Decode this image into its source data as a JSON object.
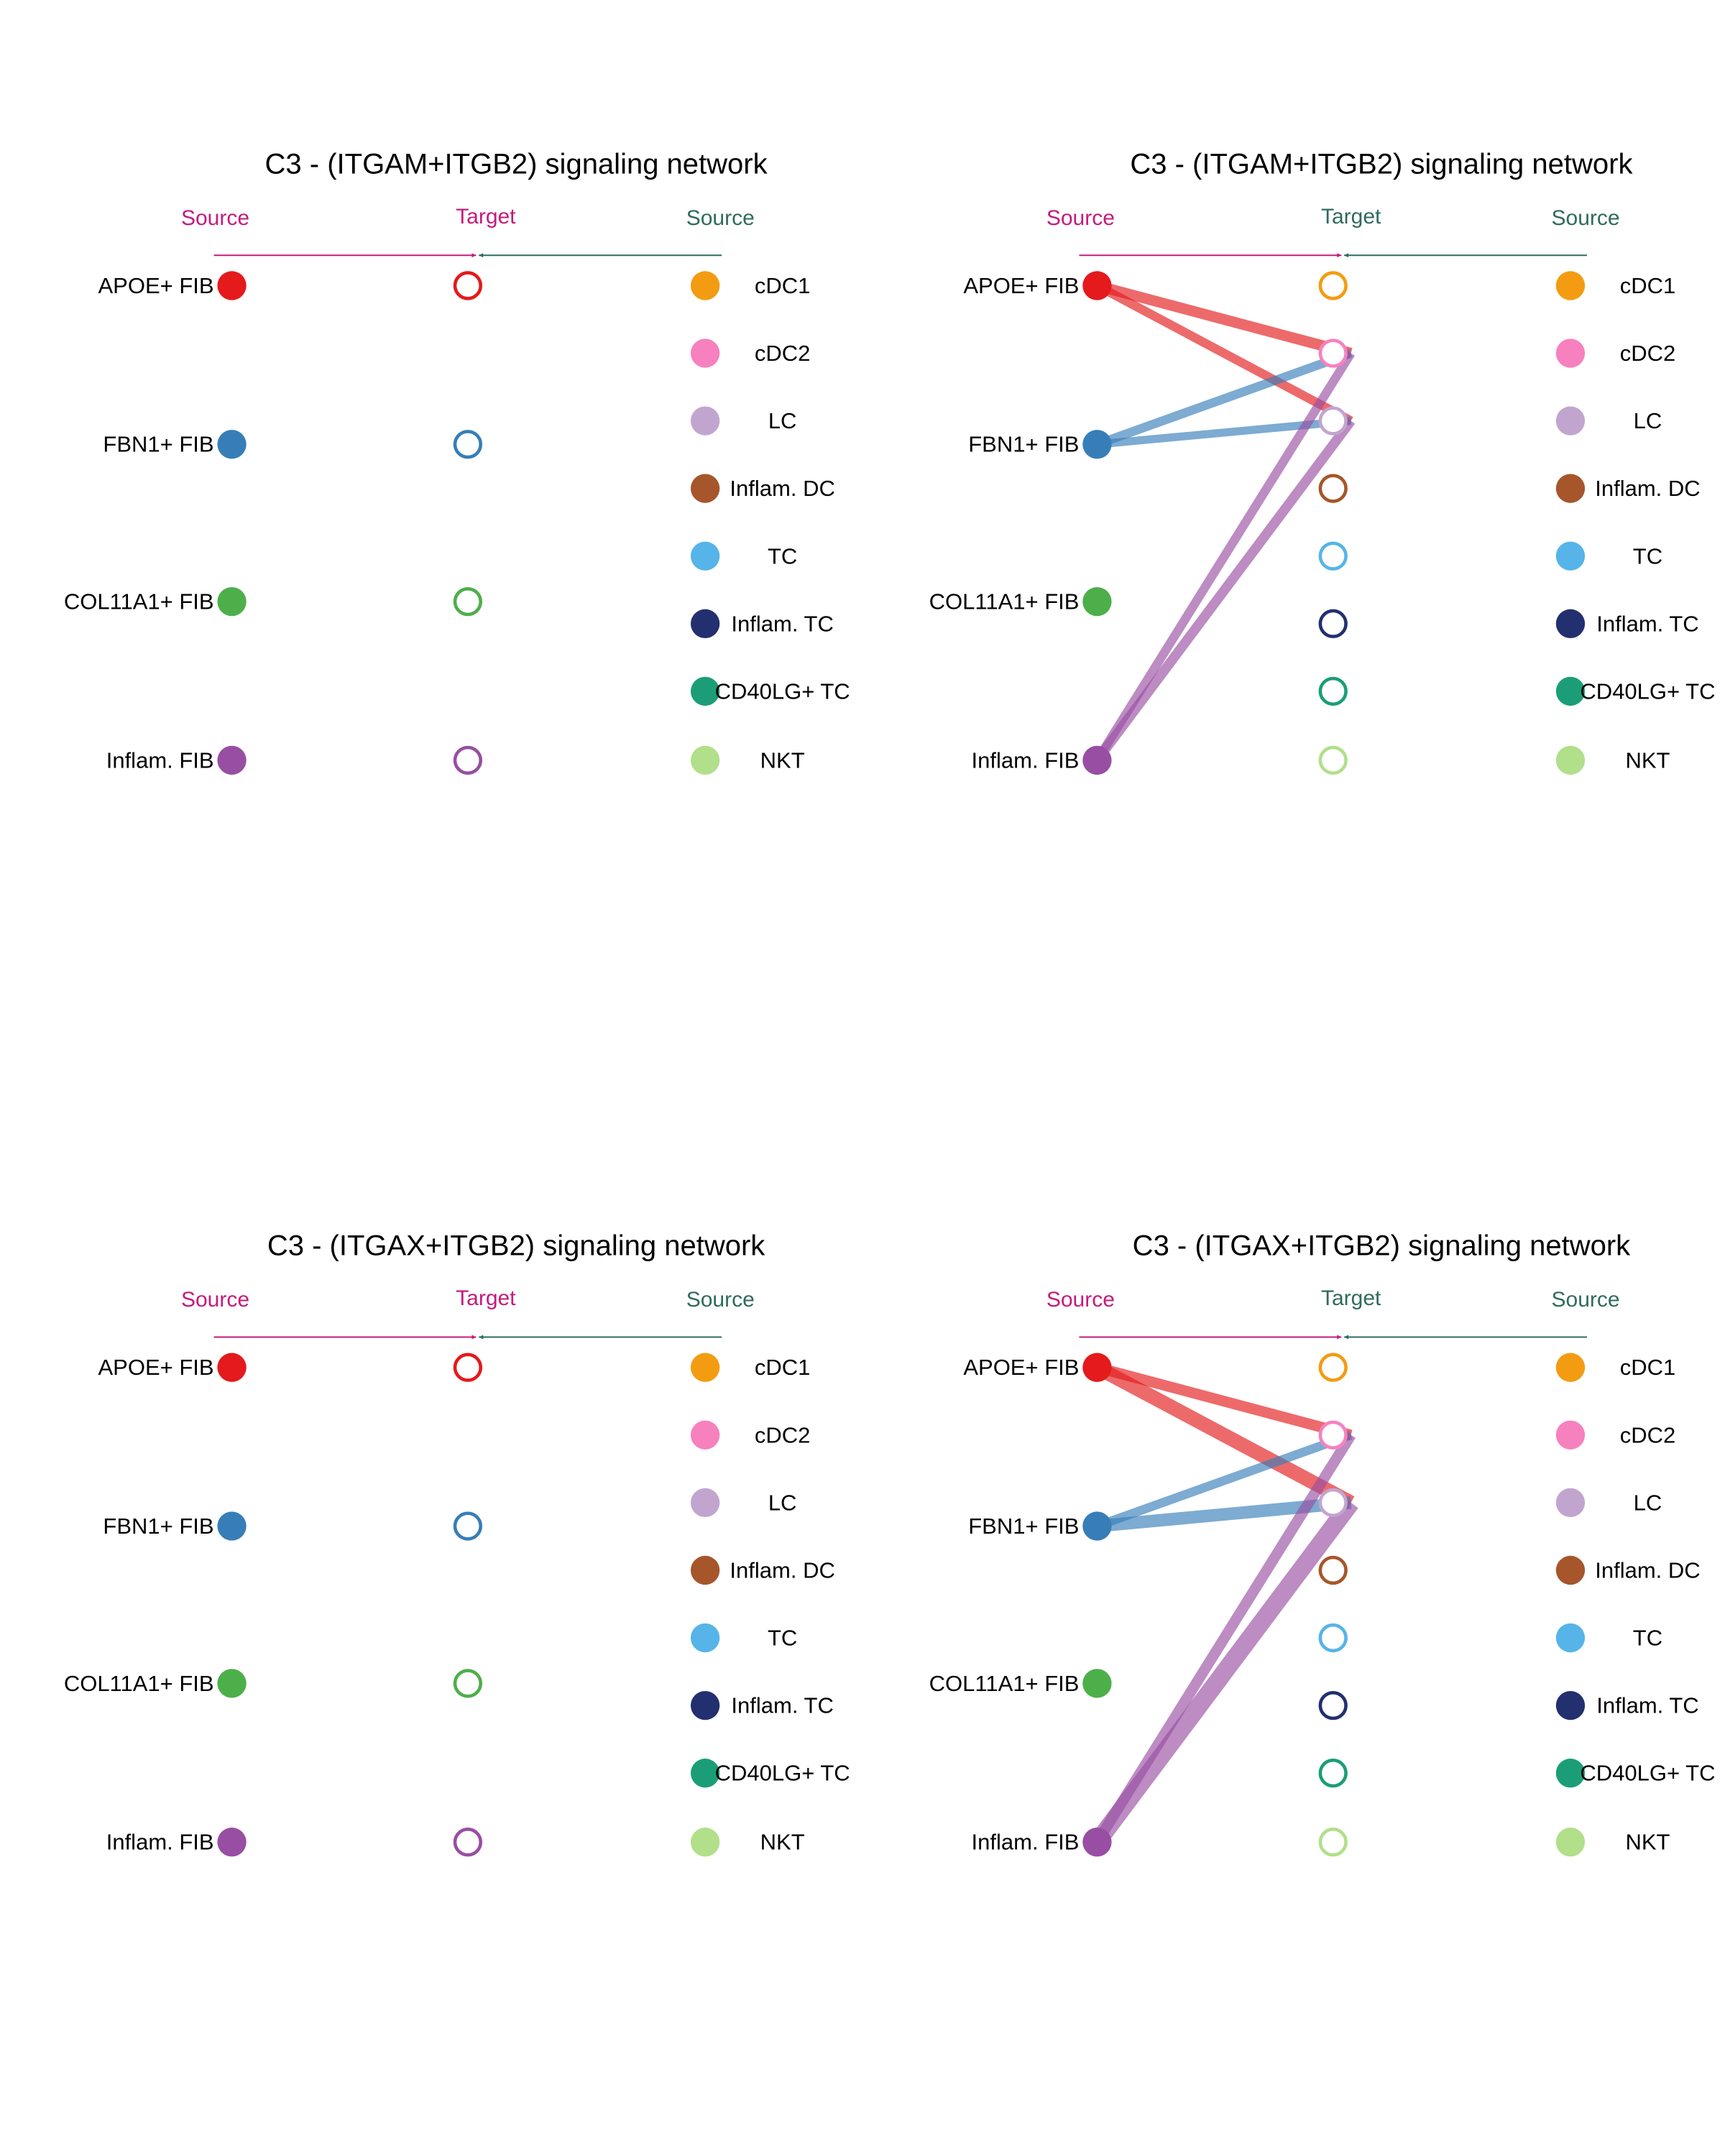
{
  "colors": {
    "target_side": "#C51B7D",
    "source_side": "#2F6B5E",
    "left_nodes": [
      "#E41A1C",
      "#377EB8",
      "#4DAF4A",
      "#984EA3"
    ],
    "right_nodes": [
      "#F39C12",
      "#F781BF",
      "#C2A5CF",
      "#A6562A",
      "#56B4E9",
      "#22306F",
      "#1B9E77",
      "#B2DF8A"
    ]
  },
  "header": {
    "source": "Source",
    "target": "Target"
  },
  "left_sources": [
    "APOE+ FIB",
    "FBN1+ FIB",
    "COL11A1+ FIB",
    "Inflam. FIB"
  ],
  "right_sources": [
    "cDC1",
    "cDC2",
    "LC",
    "Inflam. DC",
    "TC",
    "Inflam. TC",
    "CD40LG+ TC",
    "NKT"
  ],
  "panels": [
    {
      "id": "p1",
      "title": "C3 - (ITGAM+ITGB2) signaling network",
      "mode": "left",
      "edges": []
    },
    {
      "id": "p2",
      "title": "C3 - (ITGAM+ITGB2) signaling network",
      "mode": "right",
      "edges": [
        {
          "source": "APOE+ FIB",
          "target": "cDC2",
          "weight": 1.2
        },
        {
          "source": "APOE+ FIB",
          "target": "LC",
          "weight": 1.0
        },
        {
          "source": "FBN1+ FIB",
          "target": "cDC2",
          "weight": 1.0
        },
        {
          "source": "FBN1+ FIB",
          "target": "LC",
          "weight": 0.9
        },
        {
          "source": "Inflam. FIB",
          "target": "cDC2",
          "weight": 1.0
        },
        {
          "source": "Inflam. FIB",
          "target": "LC",
          "weight": 1.1
        }
      ]
    },
    {
      "id": "p3",
      "title": "C3 - (ITGAX+ITGB2) signaling network",
      "mode": "left",
      "edges": []
    },
    {
      "id": "p4",
      "title": "C3 - (ITGAX+ITGB2) signaling network",
      "mode": "right",
      "edges": [
        {
          "source": "APOE+ FIB",
          "target": "cDC2",
          "weight": 1.2
        },
        {
          "source": "APOE+ FIB",
          "target": "LC",
          "weight": 1.6
        },
        {
          "source": "FBN1+ FIB",
          "target": "cDC2",
          "weight": 1.0
        },
        {
          "source": "FBN1+ FIB",
          "target": "LC",
          "weight": 1.4
        },
        {
          "source": "Inflam. FIB",
          "target": "cDC2",
          "weight": 1.2
        },
        {
          "source": "Inflam. FIB",
          "target": "LC",
          "weight": 2.0
        }
      ]
    }
  ]
}
